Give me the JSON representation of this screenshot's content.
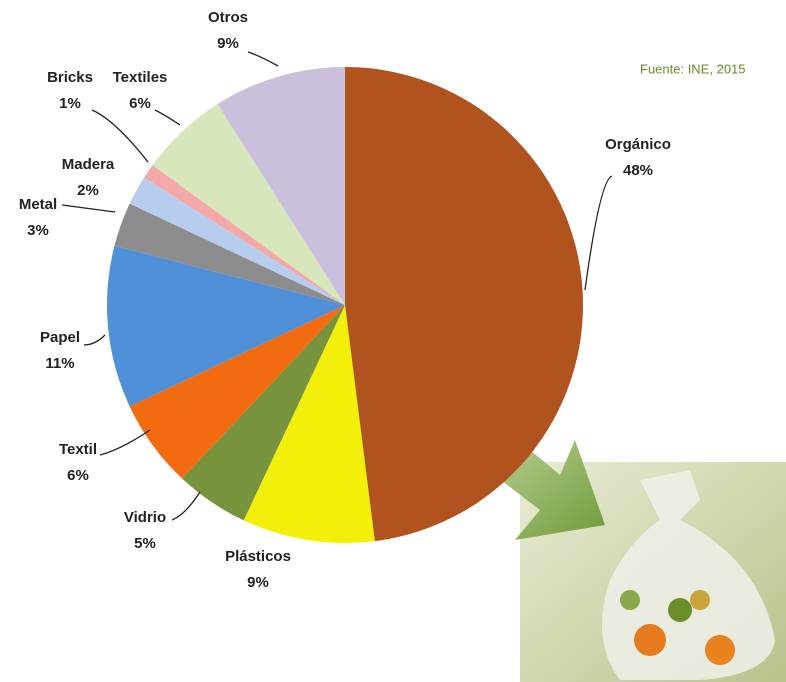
{
  "chart_data": {
    "type": "pie",
    "source": "Fuente: INE, 2015",
    "categories": [
      "Orgánico",
      "Plásticos",
      "Vidrio",
      "Textil",
      "Papel",
      "Metal",
      "Madera",
      "Bricks",
      "Textiles",
      "Otros"
    ],
    "values": [
      48,
      9,
      5,
      6,
      11,
      3,
      2,
      1,
      6,
      9
    ],
    "value_labels": [
      "48%",
      "9%",
      "5%",
      "6%",
      "11%",
      "3%",
      "2%",
      "1%",
      "6%",
      "9%"
    ],
    "colors": [
      "#b0531e",
      "#f4ef0a",
      "#77933c",
      "#f26b10",
      "#4f90d8",
      "#8c8c8c",
      "#b6cdee",
      "#f4a8a8",
      "#d8e6bc",
      "#cbc0dc"
    ]
  }
}
